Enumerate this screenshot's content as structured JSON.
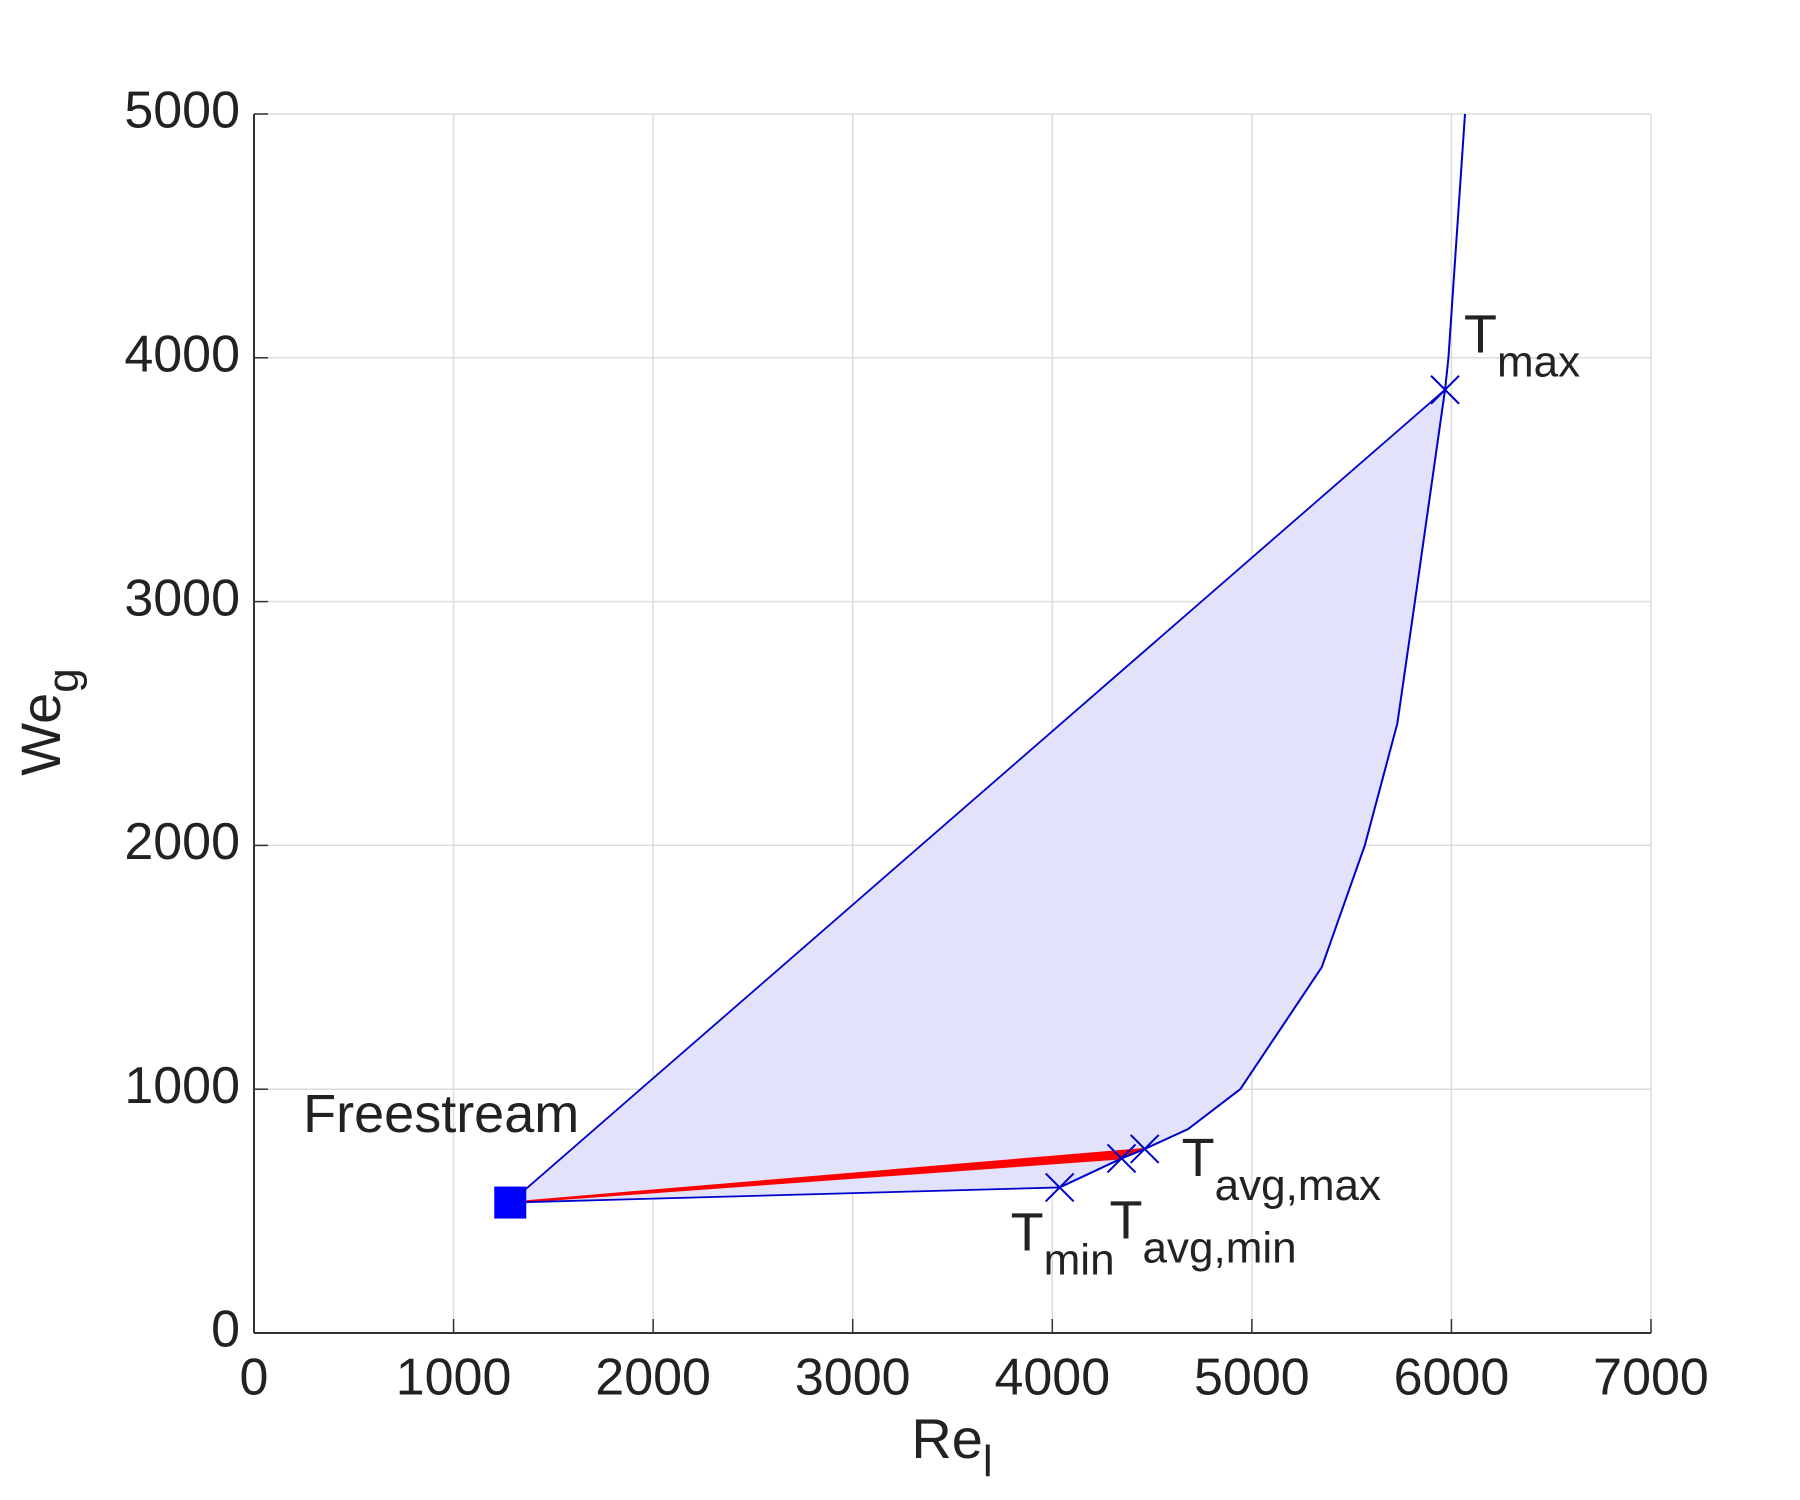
{
  "chart_data": {
    "type": "region",
    "xlabel": {
      "main": "Re",
      "sub": "l"
    },
    "ylabel": {
      "main": "We",
      "sub": "g"
    },
    "xlim": [
      0,
      7000
    ],
    "xticks": [
      0,
      1000,
      2000,
      3000,
      4000,
      5000,
      6000,
      7000
    ],
    "ylim": [
      0,
      5000
    ],
    "yticks": [
      0,
      1000,
      2000,
      3000,
      4000,
      5000
    ],
    "grid": true,
    "line_color": "#0000cc",
    "fill_color": "#e2e2fa",
    "highlight_color": "#ff0000",
    "freestream_color": "#0000ff",
    "freestream": {
      "label": "Freestream",
      "x": 1284,
      "y": 535
    },
    "curve": {
      "x": [
        4037,
        4347,
        4463,
        4680,
        4942,
        5350,
        5566,
        5729,
        5817,
        5968,
        5985,
        6068
      ],
      "y": [
        597,
        716,
        755,
        836,
        1000,
        1500,
        2000,
        2500,
        3000,
        3869,
        4000,
        5000
      ]
    },
    "markers": [
      {
        "main": "T",
        "sub": "min",
        "x": 4037,
        "y": 597
      },
      {
        "main": "T",
        "sub": "avg,min",
        "x": 4347,
        "y": 716
      },
      {
        "main": "T",
        "sub": "avg,max",
        "x": 4463,
        "y": 755
      },
      {
        "main": "T",
        "sub": "max",
        "x": 5968,
        "y": 3869
      }
    ]
  }
}
